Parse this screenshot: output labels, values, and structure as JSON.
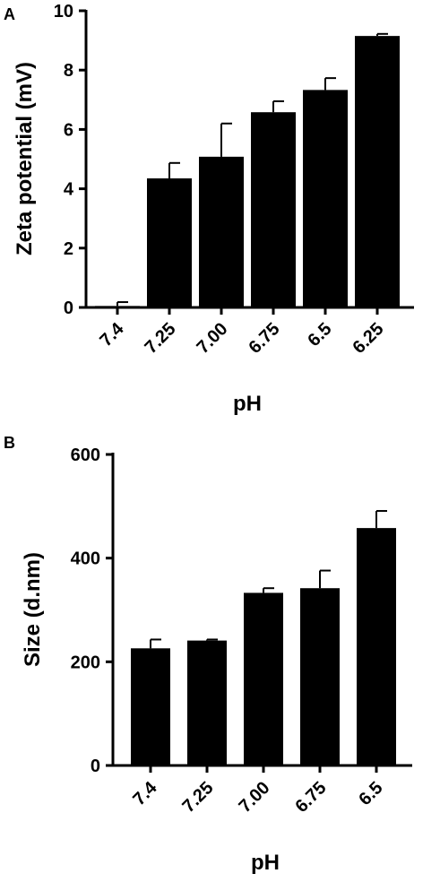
{
  "chart_data": [
    {
      "type": "bar",
      "panel": "A",
      "categories": [
        "7.4",
        "7.25",
        "7.00",
        "6.75",
        "6.5",
        "6.25"
      ],
      "values": [
        0.05,
        4.35,
        5.08,
        6.58,
        7.33,
        9.15
      ],
      "errors": [
        0.13,
        0.52,
        1.12,
        0.37,
        0.4,
        0.07
      ],
      "xlabel": "pH",
      "ylabel": "Zeta potential (mV)",
      "yticks": [
        0,
        2,
        4,
        6,
        8,
        10
      ],
      "ylim": [
        0,
        10
      ],
      "grid": false
    },
    {
      "type": "bar",
      "panel": "B",
      "categories": [
        "7.4",
        "7.25",
        "7.00",
        "6.75",
        "6.5"
      ],
      "values": [
        226,
        241,
        333,
        342,
        458
      ],
      "errors": [
        17,
        2,
        9,
        34,
        33
      ],
      "xlabel": "pH",
      "ylabel": "Size (d.nm)",
      "yticks": [
        0,
        200,
        400,
        600
      ],
      "ylim": [
        0,
        600
      ],
      "grid": false
    }
  ]
}
